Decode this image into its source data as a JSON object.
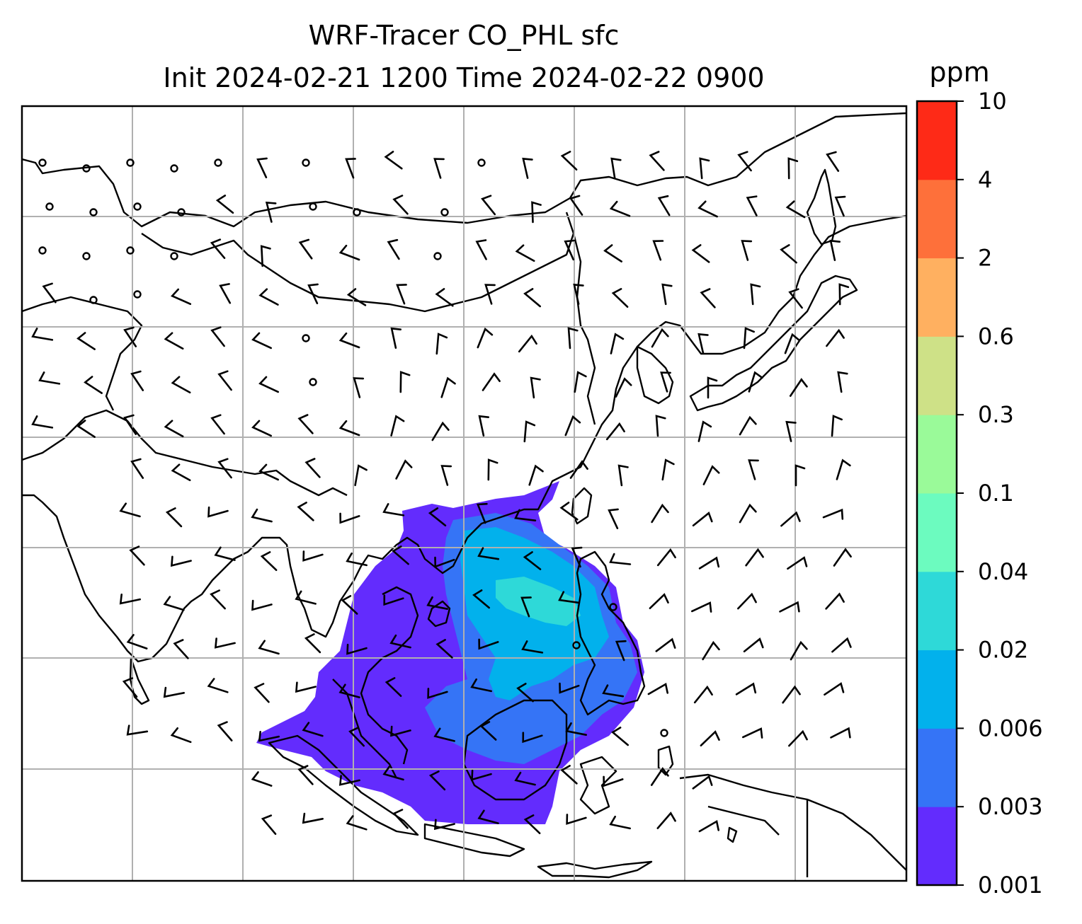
{
  "title": {
    "line1": "WRF-Tracer CO_PHL sfc",
    "line2": "Init 2024-02-21 1200 Time 2024-02-22 0900"
  },
  "colorbar": {
    "units": "ppm",
    "levels": [
      "0.001",
      "0.003",
      "0.006",
      "0.02",
      "0.04",
      "0.1",
      "0.3",
      "0.6",
      "2",
      "4",
      "10"
    ],
    "colors": [
      "#632cfd",
      "#3574f6",
      "#02b1ec",
      "#2ed9d8",
      "#6cfbbf",
      "#9afa99",
      "#cee187",
      "#ffb060",
      "#fe703a",
      "#fe2a17"
    ]
  },
  "map": {
    "background": "#ffffff",
    "gridline_color": "#b0b0b0",
    "coastline_color": "#000000",
    "gridlines": true,
    "wind_barbs": true
  }
}
